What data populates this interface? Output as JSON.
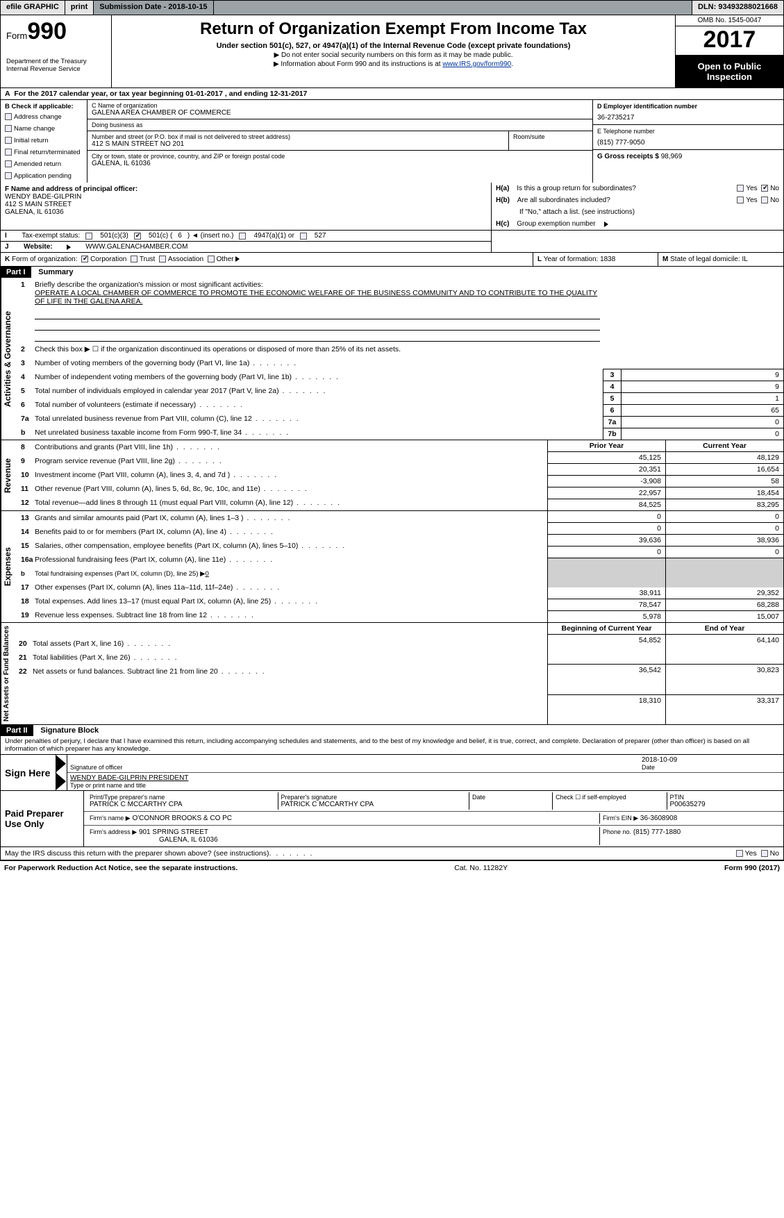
{
  "topbar": {
    "efile": "efile GRAPHIC",
    "print": "print",
    "submission_label": "Submission Date - ",
    "submission_date": "2018-10-15",
    "dln_label": "DLN: ",
    "dln": "93493288021668"
  },
  "header": {
    "form_prefix": "Form",
    "form_number": "990",
    "dept1": "Department of the Treasury",
    "dept2": "Internal Revenue Service",
    "title": "Return of Organization Exempt From Income Tax",
    "subtitle": "Under section 501(c), 527, or 4947(a)(1) of the Internal Revenue Code (except private foundations)",
    "note1": "Do not enter social security numbers on this form as it may be made public.",
    "note2_pre": "Information about Form 990 and its instructions is at ",
    "note2_link": "www.IRS.gov/form990",
    "omb": "OMB No. 1545-0047",
    "year": "2017",
    "open1": "Open to Public",
    "open2": "Inspection"
  },
  "rowA": {
    "text_pre": "For the 2017 calendar year, or tax year beginning ",
    "begin": "01-01-2017",
    "mid": " , and ending ",
    "end": "12-31-2017"
  },
  "colB": {
    "title": "Check if applicable:",
    "opts": [
      "Address change",
      "Name change",
      "Initial return",
      "Final return/terminated",
      "Amended return",
      "Application pending"
    ]
  },
  "org": {
    "c_label": "C Name of organization",
    "name": "GALENA AREA CHAMBER OF COMMERCE",
    "dba_label": "Doing business as",
    "dba": "",
    "street_label": "Number and street (or P.O. box if mail is not delivered to street address)",
    "room_label": "Room/suite",
    "street": "412 S MAIN STREET NO 201",
    "city_label": "City or town, state or province, country, and ZIP or foreign postal code",
    "city": "GALENA, IL  61036",
    "f_label": "F Name and address of principal officer:",
    "f_name": "WENDY BADE-GILPRIN",
    "f_addr1": "412 S MAIN STREET",
    "f_addr2": "GALENA, IL  61036"
  },
  "colD": {
    "d_label": "D Employer identification number",
    "ein": "36-2735217",
    "e_label": "E Telephone number",
    "phone": "(815) 777-9050",
    "g_label": "G Gross receipts $ ",
    "gross": "98,969"
  },
  "hblock": {
    "ha_label": "Is this a group return for subordinates?",
    "hb_label": "Are all subordinates included?",
    "hb_note": "If \"No,\" attach a list. (see instructions)",
    "hc_label": "Group exemption number",
    "ha_prefix": "H(a)",
    "hb_prefix": "H(b)",
    "hc_prefix": "H(c)",
    "yes": "Yes",
    "no": "No"
  },
  "taxstatus": {
    "i_label": "Tax-exempt status:",
    "opt1": "501(c)(3)",
    "opt2_pre": "501(c) (",
    "opt2_num": "6",
    "opt2_post": ") ◄ (insert no.)",
    "opt3": "4947(a)(1) or",
    "opt4": "527"
  },
  "jrow": {
    "label": "Website:",
    "url": "WWW.GALENACHAMBER.COM"
  },
  "krow": {
    "label": "Form of organization:",
    "opts": [
      "Corporation",
      "Trust",
      "Association",
      "Other"
    ],
    "checked": 0,
    "l_label": "Year of formation: ",
    "l_val": "1838",
    "m_label": "State of legal domicile: ",
    "m_val": "IL"
  },
  "part1": {
    "tag": "Part I",
    "title": "Summary"
  },
  "summary": {
    "mission_label": "Briefly describe the organization's mission or most significant activities:",
    "mission": "OPERATE A LOCAL CHAMBER OF COMMERCE TO PROMOTE THE ECONOMIC WELFARE OF THE BUSINESS COMMUNITY AND TO CONTRIBUTE TO THE QUALITY OF LIFE IN THE GALENA AREA.",
    "line2": "Check this box ▶ ☐ if the organization discontinued its operations or disposed of more than 25% of its net assets.",
    "rows_gov": [
      {
        "n": "3",
        "t": "Number of voting members of the governing body (Part VI, line 1a)",
        "k": "3",
        "v": "9"
      },
      {
        "n": "4",
        "t": "Number of independent voting members of the governing body (Part VI, line 1b)",
        "k": "4",
        "v": "9"
      },
      {
        "n": "5",
        "t": "Total number of individuals employed in calendar year 2017 (Part V, line 2a)",
        "k": "5",
        "v": "1"
      },
      {
        "n": "6",
        "t": "Total number of volunteers (estimate if necessary)",
        "k": "6",
        "v": "65"
      },
      {
        "n": "7a",
        "t": "Total unrelated business revenue from Part VIII, column (C), line 12",
        "k": "7a",
        "v": "0"
      },
      {
        "n": "b",
        "t": "Net unrelated business taxable income from Form 990-T, line 34",
        "k": "7b",
        "v": "0"
      }
    ]
  },
  "dualheaders": {
    "prior": "Prior Year",
    "current": "Current Year",
    "bcy": "Beginning of Current Year",
    "eoy": "End of Year"
  },
  "revenue": [
    {
      "n": "8",
      "t": "Contributions and grants (Part VIII, line 1h)",
      "p": "45,125",
      "c": "48,129"
    },
    {
      "n": "9",
      "t": "Program service revenue (Part VIII, line 2g)",
      "p": "20,351",
      "c": "16,654"
    },
    {
      "n": "10",
      "t": "Investment income (Part VIII, column (A), lines 3, 4, and 7d )",
      "p": "-3,908",
      "c": "58"
    },
    {
      "n": "11",
      "t": "Other revenue (Part VIII, column (A), lines 5, 6d, 8c, 9c, 10c, and 11e)",
      "p": "22,957",
      "c": "18,454"
    },
    {
      "n": "12",
      "t": "Total revenue—add lines 8 through 11 (must equal Part VIII, column (A), line 12)",
      "p": "84,525",
      "c": "83,295"
    }
  ],
  "expenses": [
    {
      "n": "13",
      "t": "Grants and similar amounts paid (Part IX, column (A), lines 1–3 )",
      "p": "0",
      "c": "0"
    },
    {
      "n": "14",
      "t": "Benefits paid to or for members (Part IX, column (A), line 4)",
      "p": "0",
      "c": "0"
    },
    {
      "n": "15",
      "t": "Salaries, other compensation, employee benefits (Part IX, column (A), lines 5–10)",
      "p": "39,636",
      "c": "38,936"
    },
    {
      "n": "16a",
      "t": "Professional fundraising fees (Part IX, column (A), line 11e)",
      "p": "0",
      "c": "0"
    }
  ],
  "expenses_b": {
    "n": "b",
    "t": "Total fundraising expenses (Part IX, column (D), line 25) ▶",
    "v": "0"
  },
  "expenses2": [
    {
      "n": "17",
      "t": "Other expenses (Part IX, column (A), lines 11a–11d, 11f–24e)",
      "p": "38,911",
      "c": "29,352"
    },
    {
      "n": "18",
      "t": "Total expenses. Add lines 13–17 (must equal Part IX, column (A), line 25)",
      "p": "78,547",
      "c": "68,288"
    },
    {
      "n": "19",
      "t": "Revenue less expenses. Subtract line 18 from line 12",
      "p": "5,978",
      "c": "15,007"
    }
  ],
  "netassets": [
    {
      "n": "20",
      "t": "Total assets (Part X, line 16)",
      "p": "54,852",
      "c": "64,140"
    },
    {
      "n": "21",
      "t": "Total liabilities (Part X, line 26)",
      "p": "36,542",
      "c": "30,823"
    },
    {
      "n": "22",
      "t": "Net assets or fund balances. Subtract line 21 from line 20",
      "p": "18,310",
      "c": "33,317"
    }
  ],
  "vert_labels": {
    "gov": "Activities & Governance",
    "rev": "Revenue",
    "exp": "Expenses",
    "net": "Net Assets or Fund Balances"
  },
  "part2": {
    "tag": "Part II",
    "title": "Signature Block",
    "perjury": "Under penalties of perjury, I declare that I have examined this return, including accompanying schedules and statements, and to the best of my knowledge and belief, it is true, correct, and complete. Declaration of preparer (other than officer) is based on all information of which preparer has any knowledge."
  },
  "sign": {
    "here": "Sign Here",
    "sig_label": "Signature of officer",
    "date_label": "Date",
    "date": "2018-10-09",
    "name": "WENDY BADE-GILPRIN  PRESIDENT",
    "name_label": "Type or print name and title"
  },
  "preparer": {
    "lab": "Paid Preparer Use Only",
    "pt_label": "Print/Type preparer's name",
    "pt_name": "PATRICK C MCCARTHY CPA",
    "psig_label": "Preparer's signature",
    "psig": "PATRICK C MCCARTHY CPA",
    "pdate_label": "Date",
    "check_label": "Check ☐ if self-employed",
    "ptin_label": "PTIN",
    "ptin": "P00635279",
    "firm_name_label": "Firm's name    ▶",
    "firm_name": "O'CONNOR BROOKS & CO PC",
    "firm_ein_label": "Firm's EIN ▶",
    "firm_ein": "36-3608908",
    "firm_addr_label": "Firm's address ▶",
    "firm_addr1": "901 SPRING STREET",
    "firm_addr2": "GALENA, IL  61036",
    "phone_label": "Phone no.",
    "phone": "(815) 777-1880"
  },
  "discuss": {
    "text": "May the IRS discuss this return with the preparer shown above? (see instructions)",
    "yes": "Yes",
    "no": "No"
  },
  "footer": {
    "left": "For Paperwork Reduction Act Notice, see the separate instructions.",
    "mid": "Cat. No. 11282Y",
    "right": "Form 990 (2017)"
  }
}
